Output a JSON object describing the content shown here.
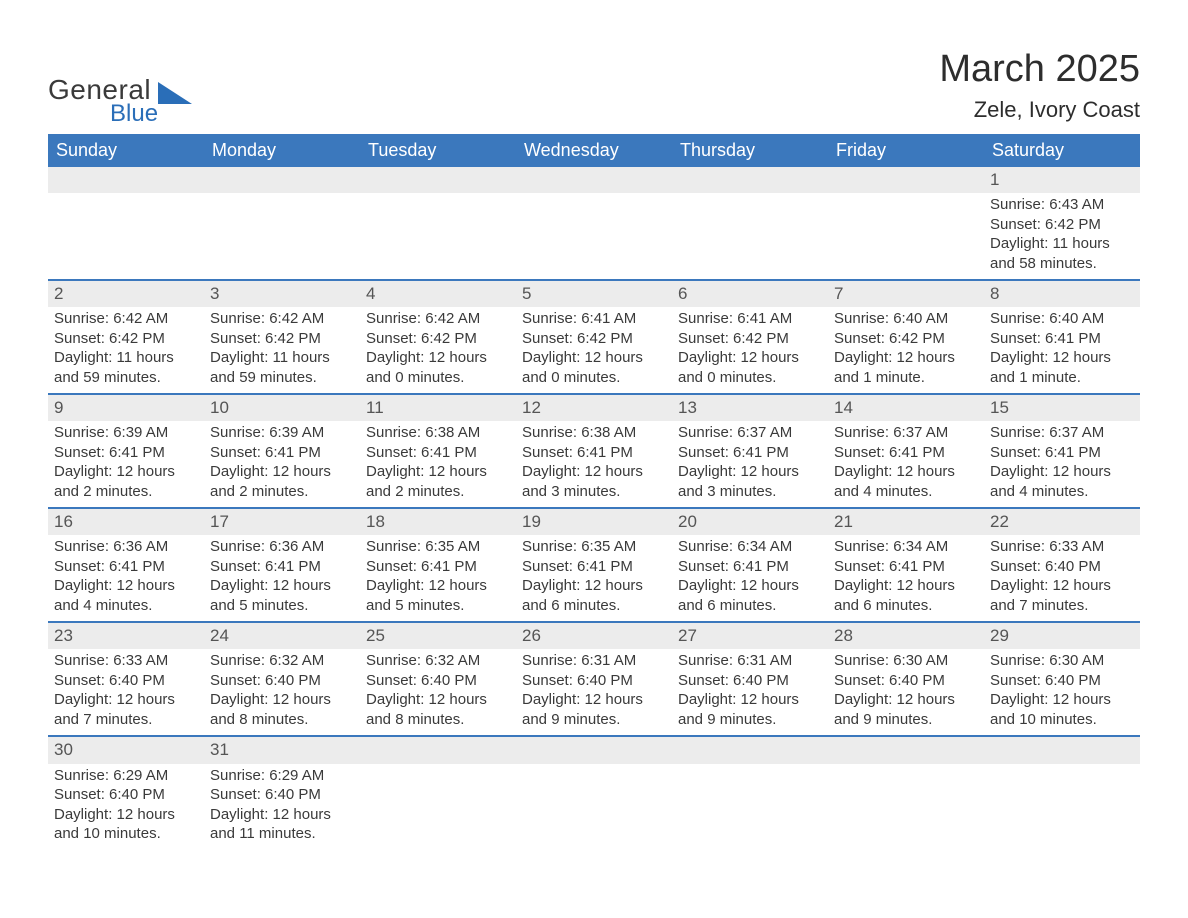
{
  "logo": {
    "primary": "General",
    "secondary": "Blue",
    "shape_color": "#2a6eb8"
  },
  "title": "March 2025",
  "location": "Zele, Ivory Coast",
  "header_bg": "#3b78bd",
  "header_fg": "#ffffff",
  "daynum_bg": "#ececec",
  "rule_color": "#3b78bd",
  "text_color": "#3a3a3a",
  "font_family": "Arial",
  "days_of_week": [
    "Sunday",
    "Monday",
    "Tuesday",
    "Wednesday",
    "Thursday",
    "Friday",
    "Saturday"
  ],
  "weeks": [
    [
      null,
      null,
      null,
      null,
      null,
      null,
      {
        "n": "1",
        "sunrise": "Sunrise: 6:43 AM",
        "sunset": "Sunset: 6:42 PM",
        "day1": "Daylight: 11 hours",
        "day2": "and 58 minutes."
      }
    ],
    [
      {
        "n": "2",
        "sunrise": "Sunrise: 6:42 AM",
        "sunset": "Sunset: 6:42 PM",
        "day1": "Daylight: 11 hours",
        "day2": "and 59 minutes."
      },
      {
        "n": "3",
        "sunrise": "Sunrise: 6:42 AM",
        "sunset": "Sunset: 6:42 PM",
        "day1": "Daylight: 11 hours",
        "day2": "and 59 minutes."
      },
      {
        "n": "4",
        "sunrise": "Sunrise: 6:42 AM",
        "sunset": "Sunset: 6:42 PM",
        "day1": "Daylight: 12 hours",
        "day2": "and 0 minutes."
      },
      {
        "n": "5",
        "sunrise": "Sunrise: 6:41 AM",
        "sunset": "Sunset: 6:42 PM",
        "day1": "Daylight: 12 hours",
        "day2": "and 0 minutes."
      },
      {
        "n": "6",
        "sunrise": "Sunrise: 6:41 AM",
        "sunset": "Sunset: 6:42 PM",
        "day1": "Daylight: 12 hours",
        "day2": "and 0 minutes."
      },
      {
        "n": "7",
        "sunrise": "Sunrise: 6:40 AM",
        "sunset": "Sunset: 6:42 PM",
        "day1": "Daylight: 12 hours",
        "day2": "and 1 minute."
      },
      {
        "n": "8",
        "sunrise": "Sunrise: 6:40 AM",
        "sunset": "Sunset: 6:41 PM",
        "day1": "Daylight: 12 hours",
        "day2": "and 1 minute."
      }
    ],
    [
      {
        "n": "9",
        "sunrise": "Sunrise: 6:39 AM",
        "sunset": "Sunset: 6:41 PM",
        "day1": "Daylight: 12 hours",
        "day2": "and 2 minutes."
      },
      {
        "n": "10",
        "sunrise": "Sunrise: 6:39 AM",
        "sunset": "Sunset: 6:41 PM",
        "day1": "Daylight: 12 hours",
        "day2": "and 2 minutes."
      },
      {
        "n": "11",
        "sunrise": "Sunrise: 6:38 AM",
        "sunset": "Sunset: 6:41 PM",
        "day1": "Daylight: 12 hours",
        "day2": "and 2 minutes."
      },
      {
        "n": "12",
        "sunrise": "Sunrise: 6:38 AM",
        "sunset": "Sunset: 6:41 PM",
        "day1": "Daylight: 12 hours",
        "day2": "and 3 minutes."
      },
      {
        "n": "13",
        "sunrise": "Sunrise: 6:37 AM",
        "sunset": "Sunset: 6:41 PM",
        "day1": "Daylight: 12 hours",
        "day2": "and 3 minutes."
      },
      {
        "n": "14",
        "sunrise": "Sunrise: 6:37 AM",
        "sunset": "Sunset: 6:41 PM",
        "day1": "Daylight: 12 hours",
        "day2": "and 4 minutes."
      },
      {
        "n": "15",
        "sunrise": "Sunrise: 6:37 AM",
        "sunset": "Sunset: 6:41 PM",
        "day1": "Daylight: 12 hours",
        "day2": "and 4 minutes."
      }
    ],
    [
      {
        "n": "16",
        "sunrise": "Sunrise: 6:36 AM",
        "sunset": "Sunset: 6:41 PM",
        "day1": "Daylight: 12 hours",
        "day2": "and 4 minutes."
      },
      {
        "n": "17",
        "sunrise": "Sunrise: 6:36 AM",
        "sunset": "Sunset: 6:41 PM",
        "day1": "Daylight: 12 hours",
        "day2": "and 5 minutes."
      },
      {
        "n": "18",
        "sunrise": "Sunrise: 6:35 AM",
        "sunset": "Sunset: 6:41 PM",
        "day1": "Daylight: 12 hours",
        "day2": "and 5 minutes."
      },
      {
        "n": "19",
        "sunrise": "Sunrise: 6:35 AM",
        "sunset": "Sunset: 6:41 PM",
        "day1": "Daylight: 12 hours",
        "day2": "and 6 minutes."
      },
      {
        "n": "20",
        "sunrise": "Sunrise: 6:34 AM",
        "sunset": "Sunset: 6:41 PM",
        "day1": "Daylight: 12 hours",
        "day2": "and 6 minutes."
      },
      {
        "n": "21",
        "sunrise": "Sunrise: 6:34 AM",
        "sunset": "Sunset: 6:41 PM",
        "day1": "Daylight: 12 hours",
        "day2": "and 6 minutes."
      },
      {
        "n": "22",
        "sunrise": "Sunrise: 6:33 AM",
        "sunset": "Sunset: 6:40 PM",
        "day1": "Daylight: 12 hours",
        "day2": "and 7 minutes."
      }
    ],
    [
      {
        "n": "23",
        "sunrise": "Sunrise: 6:33 AM",
        "sunset": "Sunset: 6:40 PM",
        "day1": "Daylight: 12 hours",
        "day2": "and 7 minutes."
      },
      {
        "n": "24",
        "sunrise": "Sunrise: 6:32 AM",
        "sunset": "Sunset: 6:40 PM",
        "day1": "Daylight: 12 hours",
        "day2": "and 8 minutes."
      },
      {
        "n": "25",
        "sunrise": "Sunrise: 6:32 AM",
        "sunset": "Sunset: 6:40 PM",
        "day1": "Daylight: 12 hours",
        "day2": "and 8 minutes."
      },
      {
        "n": "26",
        "sunrise": "Sunrise: 6:31 AM",
        "sunset": "Sunset: 6:40 PM",
        "day1": "Daylight: 12 hours",
        "day2": "and 9 minutes."
      },
      {
        "n": "27",
        "sunrise": "Sunrise: 6:31 AM",
        "sunset": "Sunset: 6:40 PM",
        "day1": "Daylight: 12 hours",
        "day2": "and 9 minutes."
      },
      {
        "n": "28",
        "sunrise": "Sunrise: 6:30 AM",
        "sunset": "Sunset: 6:40 PM",
        "day1": "Daylight: 12 hours",
        "day2": "and 9 minutes."
      },
      {
        "n": "29",
        "sunrise": "Sunrise: 6:30 AM",
        "sunset": "Sunset: 6:40 PM",
        "day1": "Daylight: 12 hours",
        "day2": "and 10 minutes."
      }
    ],
    [
      {
        "n": "30",
        "sunrise": "Sunrise: 6:29 AM",
        "sunset": "Sunset: 6:40 PM",
        "day1": "Daylight: 12 hours",
        "day2": "and 10 minutes."
      },
      {
        "n": "31",
        "sunrise": "Sunrise: 6:29 AM",
        "sunset": "Sunset: 6:40 PM",
        "day1": "Daylight: 12 hours",
        "day2": "and 11 minutes."
      },
      null,
      null,
      null,
      null,
      null
    ]
  ]
}
